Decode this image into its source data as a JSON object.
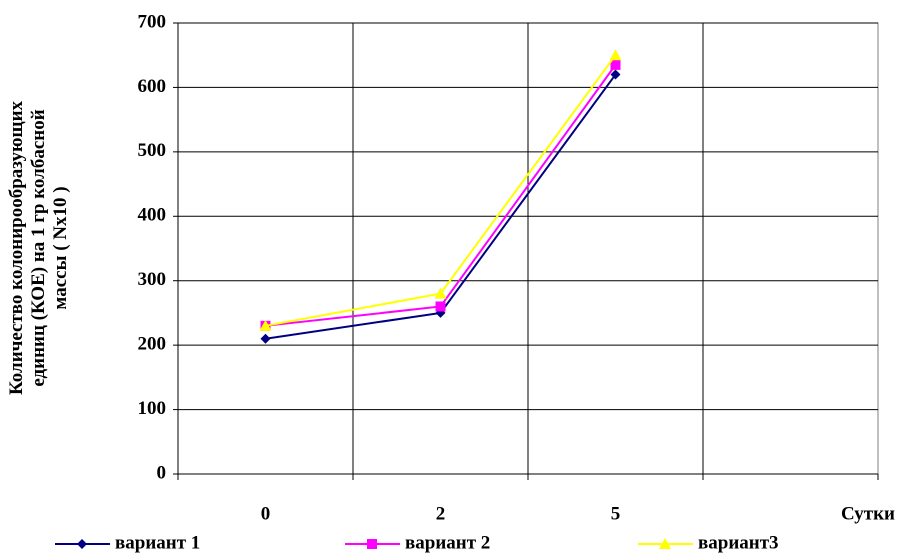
{
  "chart_data": {
    "type": "line",
    "y_label": [
      "Количество колонирообразующих",
      "единиц (КОЕ) на 1 гр колбасной",
      "массы ( Nx10 )"
    ],
    "x_label": "Сутки",
    "categories": [
      "0",
      "2",
      "5",
      null
    ],
    "series": [
      {
        "name": "вариант 1",
        "color": "#000080",
        "marker": "diamond",
        "values": [
          210,
          250,
          620,
          null
        ]
      },
      {
        "name": "вариант 2",
        "color": "#ff00ff",
        "marker": "square",
        "values": [
          230,
          260,
          635,
          null
        ]
      },
      {
        "name": "вариант3",
        "color": "#ffff00",
        "marker": "triangle",
        "values": [
          230,
          280,
          650,
          null
        ]
      }
    ],
    "ylim": [
      0,
      700
    ],
    "yticks": [
      0,
      100,
      200,
      300,
      400,
      500,
      600,
      700
    ],
    "grid": true,
    "legend": "bottom"
  }
}
